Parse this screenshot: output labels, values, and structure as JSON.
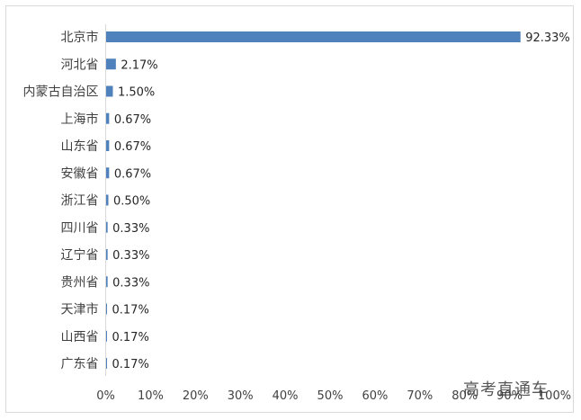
{
  "watermark": "高考直通车",
  "chart_data": {
    "type": "bar",
    "orientation": "horizontal",
    "categories": [
      "北京市",
      "河北省",
      "内蒙古自治区",
      "上海市",
      "山东省",
      "安徽省",
      "浙江省",
      "四川省",
      "辽宁省",
      "贵州省",
      "天津市",
      "山西省",
      "广东省"
    ],
    "values": [
      92.33,
      2.17,
      1.5,
      0.67,
      0.67,
      0.67,
      0.5,
      0.33,
      0.33,
      0.33,
      0.17,
      0.17,
      0.17
    ],
    "value_labels": [
      "92.33%",
      "2.17%",
      "1.50%",
      "0.67%",
      "0.67%",
      "0.67%",
      "0.50%",
      "0.33%",
      "0.33%",
      "0.33%",
      "0.17%",
      "0.17%",
      "0.17%"
    ],
    "x_ticks": [
      "0%",
      "10%",
      "20%",
      "30%",
      "40%",
      "50%",
      "60%",
      "70%",
      "80%",
      "90%",
      "100%"
    ],
    "xlim": [
      0,
      100
    ],
    "bar_color": "#4f81bd",
    "grid": false,
    "title": "",
    "xlabel": "",
    "ylabel": ""
  }
}
